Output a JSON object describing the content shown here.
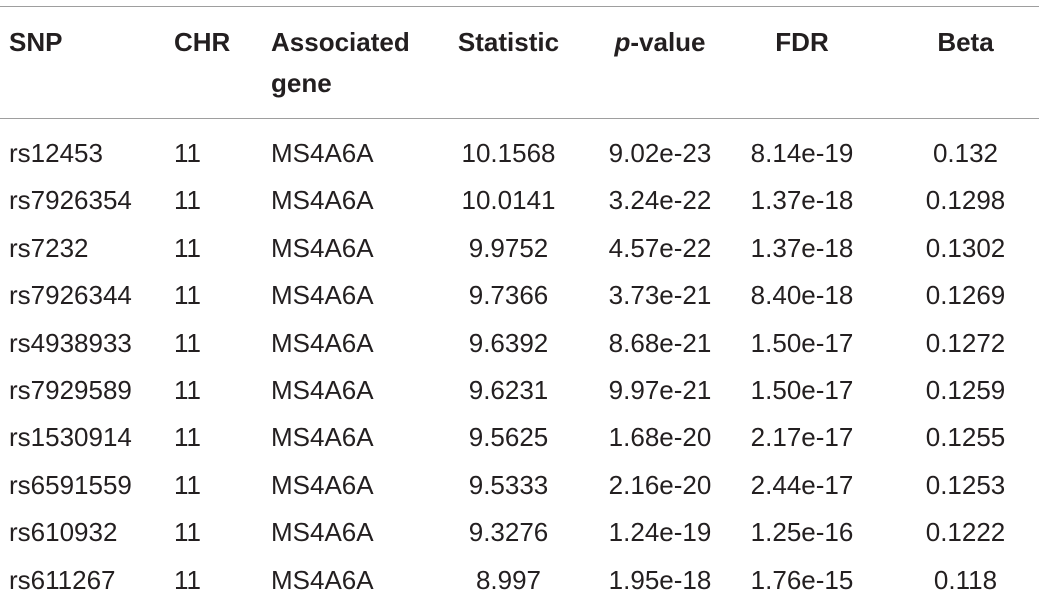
{
  "table": {
    "headers": {
      "snp": "SNP",
      "chr": "CHR",
      "gene_line1": "Associated",
      "gene_line2": "gene",
      "statistic": "Statistic",
      "pvalue_p": "p",
      "pvalue_rest": "-value",
      "fdr": "FDR",
      "beta": "Beta"
    },
    "rows": [
      {
        "snp": "rs12453",
        "chr": "11",
        "gene": "MS4A6A",
        "statistic": "10.1568",
        "pvalue": "9.02e-23",
        "fdr": "8.14e-19",
        "beta": "0.132"
      },
      {
        "snp": "rs7926354",
        "chr": "11",
        "gene": "MS4A6A",
        "statistic": "10.0141",
        "pvalue": "3.24e-22",
        "fdr": "1.37e-18",
        "beta": "0.1298"
      },
      {
        "snp": "rs7232",
        "chr": "11",
        "gene": "MS4A6A",
        "statistic": "9.9752",
        "pvalue": "4.57e-22",
        "fdr": "1.37e-18",
        "beta": "0.1302"
      },
      {
        "snp": "rs7926344",
        "chr": "11",
        "gene": "MS4A6A",
        "statistic": "9.7366",
        "pvalue": "3.73e-21",
        "fdr": "8.40e-18",
        "beta": "0.1269"
      },
      {
        "snp": "rs4938933",
        "chr": "11",
        "gene": "MS4A6A",
        "statistic": "9.6392",
        "pvalue": "8.68e-21",
        "fdr": "1.50e-17",
        "beta": "0.1272"
      },
      {
        "snp": "rs7929589",
        "chr": "11",
        "gene": "MS4A6A",
        "statistic": "9.6231",
        "pvalue": "9.97e-21",
        "fdr": "1.50e-17",
        "beta": "0.1259"
      },
      {
        "snp": "rs1530914",
        "chr": "11",
        "gene": "MS4A6A",
        "statistic": "9.5625",
        "pvalue": "1.68e-20",
        "fdr": "2.17e-17",
        "beta": "0.1255"
      },
      {
        "snp": "rs6591559",
        "chr": "11",
        "gene": "MS4A6A",
        "statistic": "9.5333",
        "pvalue": "2.16e-20",
        "fdr": "2.44e-17",
        "beta": "0.1253"
      },
      {
        "snp": "rs610932",
        "chr": "11",
        "gene": "MS4A6A",
        "statistic": "9.3276",
        "pvalue": "1.24e-19",
        "fdr": "1.25e-16",
        "beta": "0.1222"
      },
      {
        "snp": "rs611267",
        "chr": "11",
        "gene": "MS4A6A",
        "statistic": "8.997",
        "pvalue": "1.95e-18",
        "fdr": "1.76e-15",
        "beta": "0.118"
      }
    ]
  }
}
